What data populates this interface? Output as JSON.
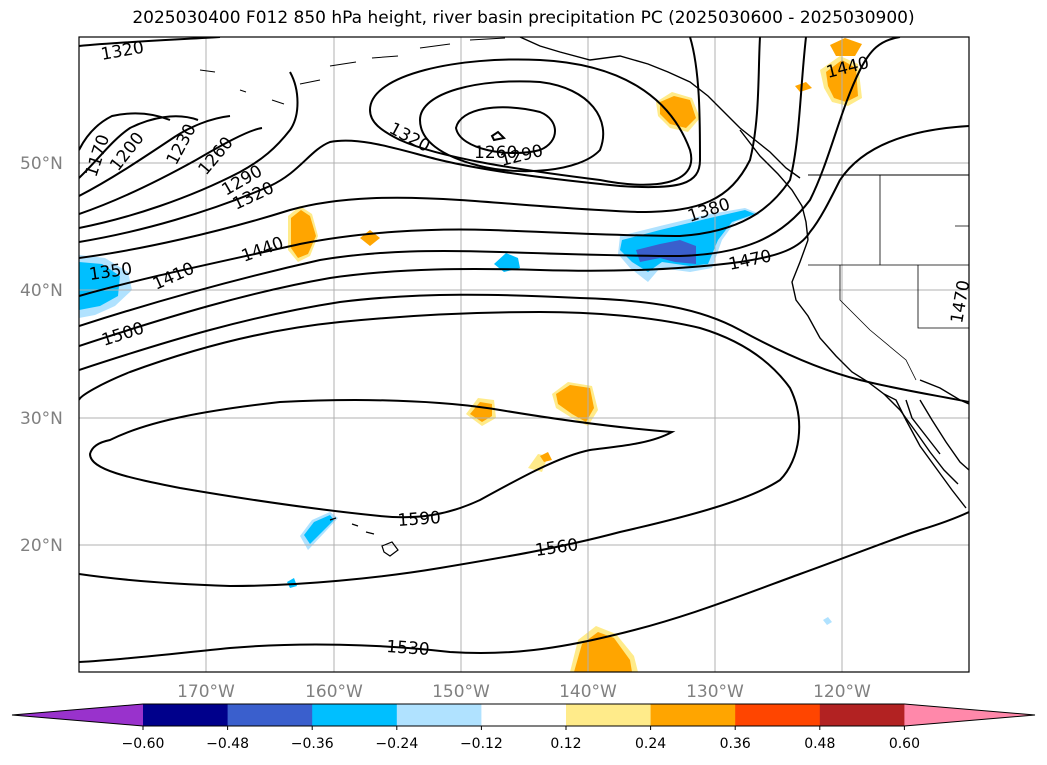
{
  "title": "2025030400 F012 850 hPa height, river basin precipitation PC (2025030600 - 2025030900)",
  "lat_labels": [
    "50°N",
    "40°N",
    "30°N",
    "20°N"
  ],
  "lon_labels": [
    "170°W",
    "160°W",
    "150°W",
    "140°W",
    "130°W",
    "120°W"
  ],
  "contour_labels": [
    "1320",
    "1170",
    "1200",
    "1230",
    "1260",
    "1290",
    "1320",
    "1320",
    "1260",
    "1290",
    "1380",
    "1440",
    "1440",
    "1350",
    "1410",
    "1470",
    "1470",
    "1500",
    "1590",
    "1560",
    "1530"
  ],
  "colorbar": {
    "ticks": [
      "−0.60",
      "−0.48",
      "−0.36",
      "−0.24",
      "−0.12",
      "0.12",
      "0.24",
      "0.36",
      "0.48",
      "0.60"
    ],
    "colors": [
      "#9932cc",
      "#00008b",
      "#3a5fcd",
      "#00bfff",
      "#b0e2ff",
      "#ffffff",
      "#ffeb8a",
      "#ffa500",
      "#ff4500",
      "#b22222",
      "#ff88aa"
    ]
  },
  "colors": {
    "contour": "#000000",
    "grid": "#b0b0b0",
    "neg_dark": "#3a5fcd",
    "neg_mid": "#00bfff",
    "neg_light": "#b0e2ff",
    "pos_light": "#ffeb8a",
    "pos_mid": "#ffa500"
  }
}
